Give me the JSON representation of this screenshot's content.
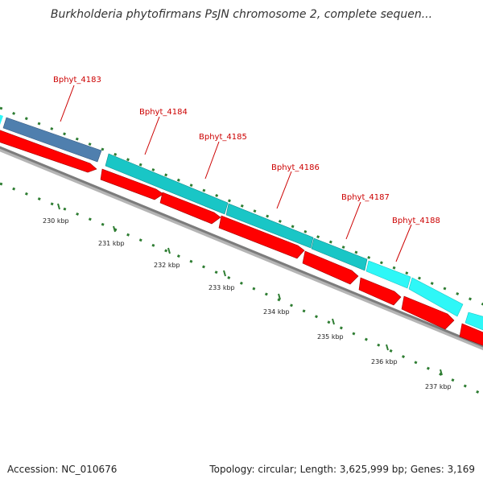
{
  "title": "Burkholderia phytofirmans PsJN chromosome 2, complete sequen...",
  "footer": {
    "accession": "Accession: NC_010676",
    "stats": "Topology: circular; Length: 3,625,999 bp; Genes: 3,169"
  },
  "colors": {
    "label_red": "#cc0000",
    "gene_red": "#ff0000",
    "gene_teal": "#19c6c6",
    "gene_cyan": "#2ef7f7",
    "gene_blue": "#4f7fae",
    "backbone": "#808080",
    "tick_green": "#2e7d32"
  },
  "genes": [
    {
      "name": "Bphyt_4183"
    },
    {
      "name": "Bphyt_4184"
    },
    {
      "name": "Bphyt_4185"
    },
    {
      "name": "Bphyt_4186"
    },
    {
      "name": "Bphyt_4187"
    },
    {
      "name": "Bphyt_4188"
    }
  ],
  "ticks": [
    {
      "label": "230 kbp"
    },
    {
      "label": "231 kbp"
    },
    {
      "label": "232 kbp"
    },
    {
      "label": "233 kbp"
    },
    {
      "label": "234 kbp"
    },
    {
      "label": "235 kbp"
    },
    {
      "label": "236 kbp"
    },
    {
      "label": "237 kbp"
    }
  ]
}
